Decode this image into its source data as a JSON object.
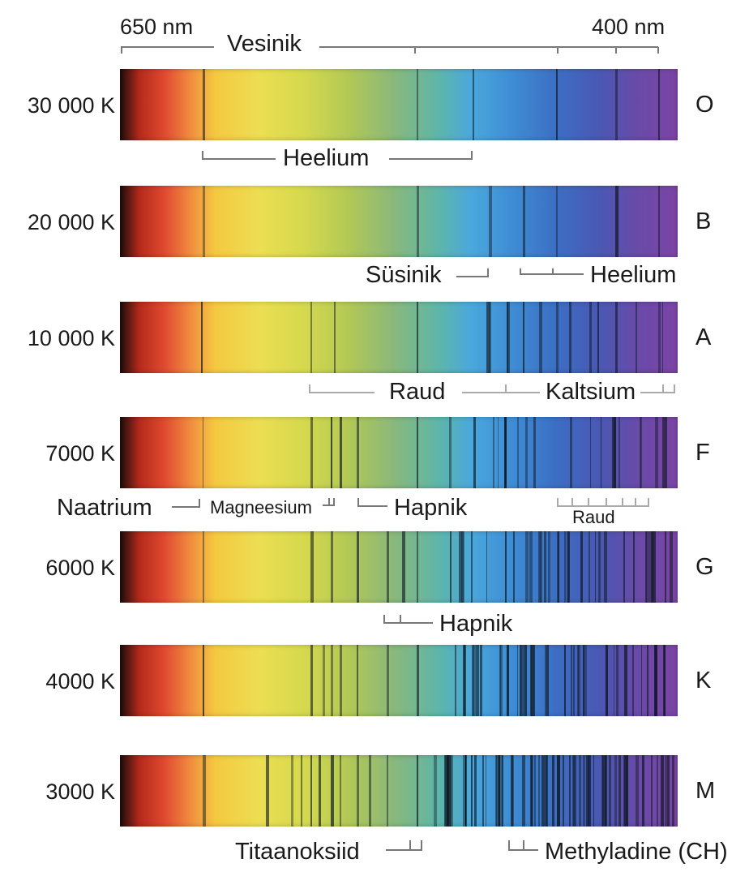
{
  "wavelength_labels": {
    "left": "650 nm",
    "right": "400 nm"
  },
  "top_annotation": "Vesinik",
  "classes": [
    {
      "temperature": "30 000 K",
      "class": "O",
      "density": 0
    },
    {
      "temperature": "20 000 K",
      "class": "B",
      "density": 0
    },
    {
      "temperature": "10 000 K",
      "class": "A",
      "density": 6
    },
    {
      "temperature": "7000 K",
      "class": "F",
      "density": 22
    },
    {
      "temperature": "6000 K",
      "class": "G",
      "density": 34
    },
    {
      "temperature": "4000 K",
      "class": "K",
      "density": 44
    },
    {
      "temperature": "3000 K",
      "class": "M",
      "density": 70
    }
  ],
  "annotations": {
    "heelium_o": "Heelium",
    "susinik": "Süsinik",
    "heelium_b": "Heelium",
    "raud_a": "Raud",
    "kaltsium": "Kaltsium",
    "naatrium": "Naatrium",
    "magneesium": "Magneesium",
    "hapnik_f": "Hapnik",
    "raud_f": "Raud",
    "hapnik_g": "Hapnik",
    "titaanoksiid": "Titaanoksiid",
    "methyladine": "Methyladine (CH)"
  },
  "colors": {
    "line_dark": "#0f1923",
    "bracket": "#777777",
    "bracket_light": "#aaaaaa"
  }
}
